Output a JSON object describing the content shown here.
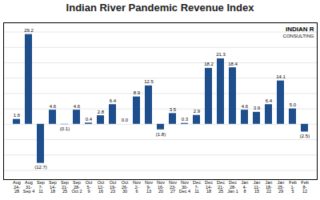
{
  "chart_data": {
    "type": "bar",
    "title": "Indian River Pandemic Revenue Index",
    "categories": [
      "Aug\n24-\n28",
      "Aug\n31-\nSep 4",
      "Sep\n7-\n11",
      "Sep\n14-\n18",
      "Sep\n21-\n25",
      "Sep\n28-\nOct 2",
      "Oct\n5-\n9",
      "Oct\n12-\n16",
      "Oct\n19-\n23",
      "Oct\n26-\n30",
      "Nov\n2-\n6",
      "Nov\n9-\n13",
      "Nov\n16-\n20",
      "Nov\n23-\n27",
      "Nov\n30-\nDec 4",
      "Dec\n7-\n11",
      "Dec\n14-\n18",
      "Dec\n21-\n25",
      "Dec\n28-\nJan 1",
      "Jan\n4-\n8",
      "Jan\n11-\n15",
      "Jan\n18-\n22",
      "Jan\n25-\n29",
      "Feb\n1-\n5",
      "Feb\n8-\n12"
    ],
    "values": [
      1.6,
      29.2,
      -12.7,
      4.6,
      -0.1,
      4.6,
      0.4,
      2.8,
      6.4,
      0.0,
      8.9,
      12.5,
      -1.8,
      3.5,
      0.3,
      2.9,
      18.2,
      21.3,
      18.4,
      4.6,
      3.9,
      6.4,
      14.1,
      5.0,
      -2.5
    ],
    "value_labels": [
      "1.6",
      "29.2",
      "(12.7)",
      "4.6",
      "(0.1)",
      "4.6",
      "0.4",
      "2.8",
      "6.4",
      "0.0",
      "8.9",
      "12.5",
      "(1.8)",
      "3.5",
      "0.3",
      "2.9",
      "18.2",
      "21.3",
      "18.4",
      "4.6",
      "3.9",
      "6.4",
      "14.1",
      "5.0",
      "(2.5)"
    ],
    "data_labels": true,
    "color": "#1F4E8C",
    "ylim": [
      -18,
      33
    ],
    "yticks": [
      -15,
      -10,
      -5,
      0,
      5,
      10,
      15,
      20,
      25,
      30
    ],
    "grid": true,
    "tick_labels": "x",
    "annotations": [
      "INDIAN R",
      "CONSULTING"
    ]
  }
}
